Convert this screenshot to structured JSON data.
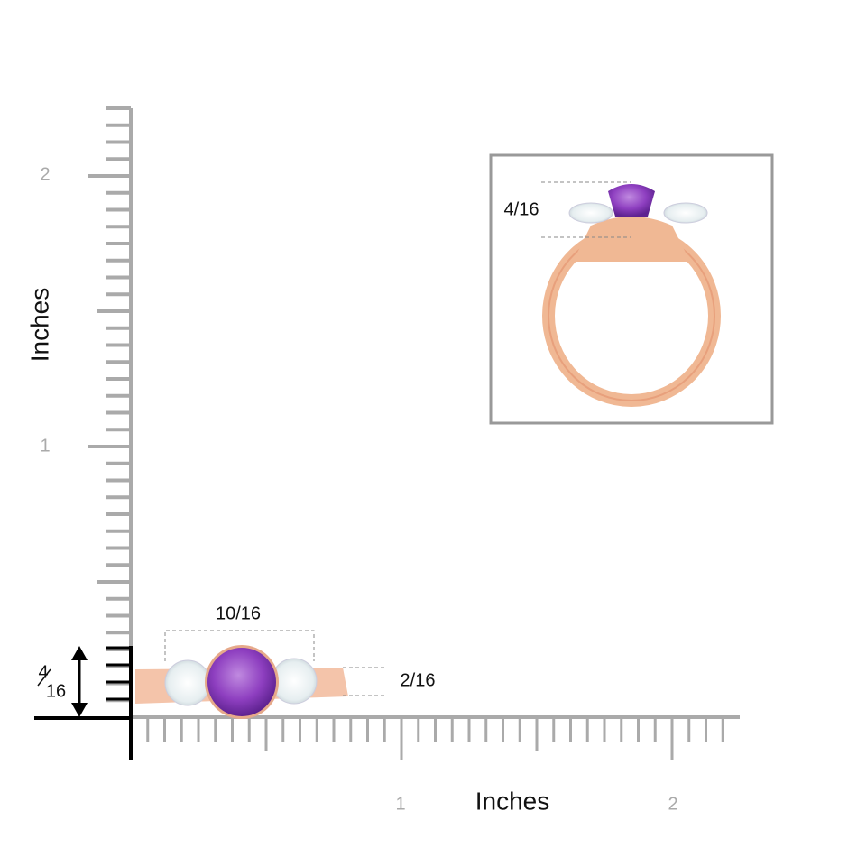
{
  "y_axis": {
    "label": "Inches",
    "ticks": [
      "1",
      "2"
    ]
  },
  "x_axis": {
    "label": "Inches",
    "ticks": [
      "1",
      "2"
    ]
  },
  "top_view": {
    "width": "10/16",
    "height": "2/16",
    "side_height_numerator": "4",
    "side_height_denominator": "16"
  },
  "side_view": {
    "height": "4/16"
  }
}
